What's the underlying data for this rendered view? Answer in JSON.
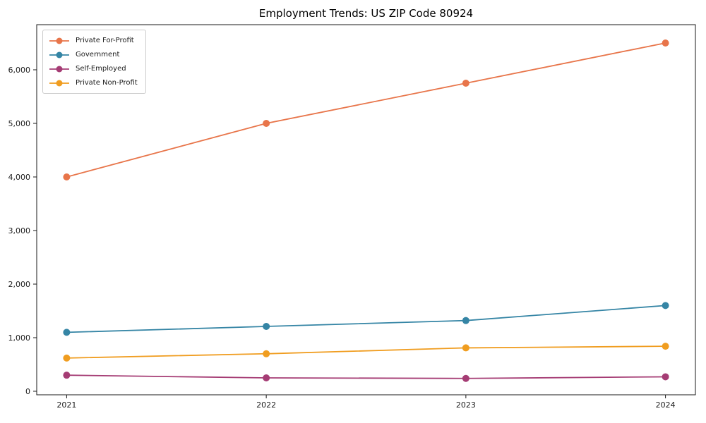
{
  "chart_data": {
    "type": "line",
    "title": "Employment Trends: US ZIP Code 80924",
    "xlabel": "",
    "ylabel": "",
    "x": [
      2021,
      2022,
      2023,
      2024
    ],
    "x_tick_labels": [
      "2021",
      "2022",
      "2023",
      "2024"
    ],
    "series": [
      {
        "name": "Private For-Profit",
        "color": "#e8754a",
        "values": [
          4000,
          5000,
          5750,
          6500
        ]
      },
      {
        "name": "Government",
        "color": "#3585a5",
        "values": [
          1100,
          1210,
          1320,
          1600
        ]
      },
      {
        "name": "Self-Employed",
        "color": "#a53c74",
        "values": [
          300,
          250,
          240,
          270
        ]
      },
      {
        "name": "Private Non-Profit",
        "color": "#f09d20",
        "values": [
          620,
          700,
          810,
          840
        ]
      }
    ],
    "y_ticks": [
      0,
      1000,
      2000,
      3000,
      4000,
      5000,
      6000
    ],
    "y_tick_labels": [
      "0",
      "1,000",
      "2,000",
      "3,000",
      "4,000",
      "5,000",
      "6,000"
    ],
    "xlim": [
      2020.85,
      2024.15
    ],
    "ylim": [
      -66,
      6842
    ],
    "grid": false,
    "legend_position": "upper-left",
    "marker": "circle",
    "axis_color": "#1a1a1a"
  }
}
